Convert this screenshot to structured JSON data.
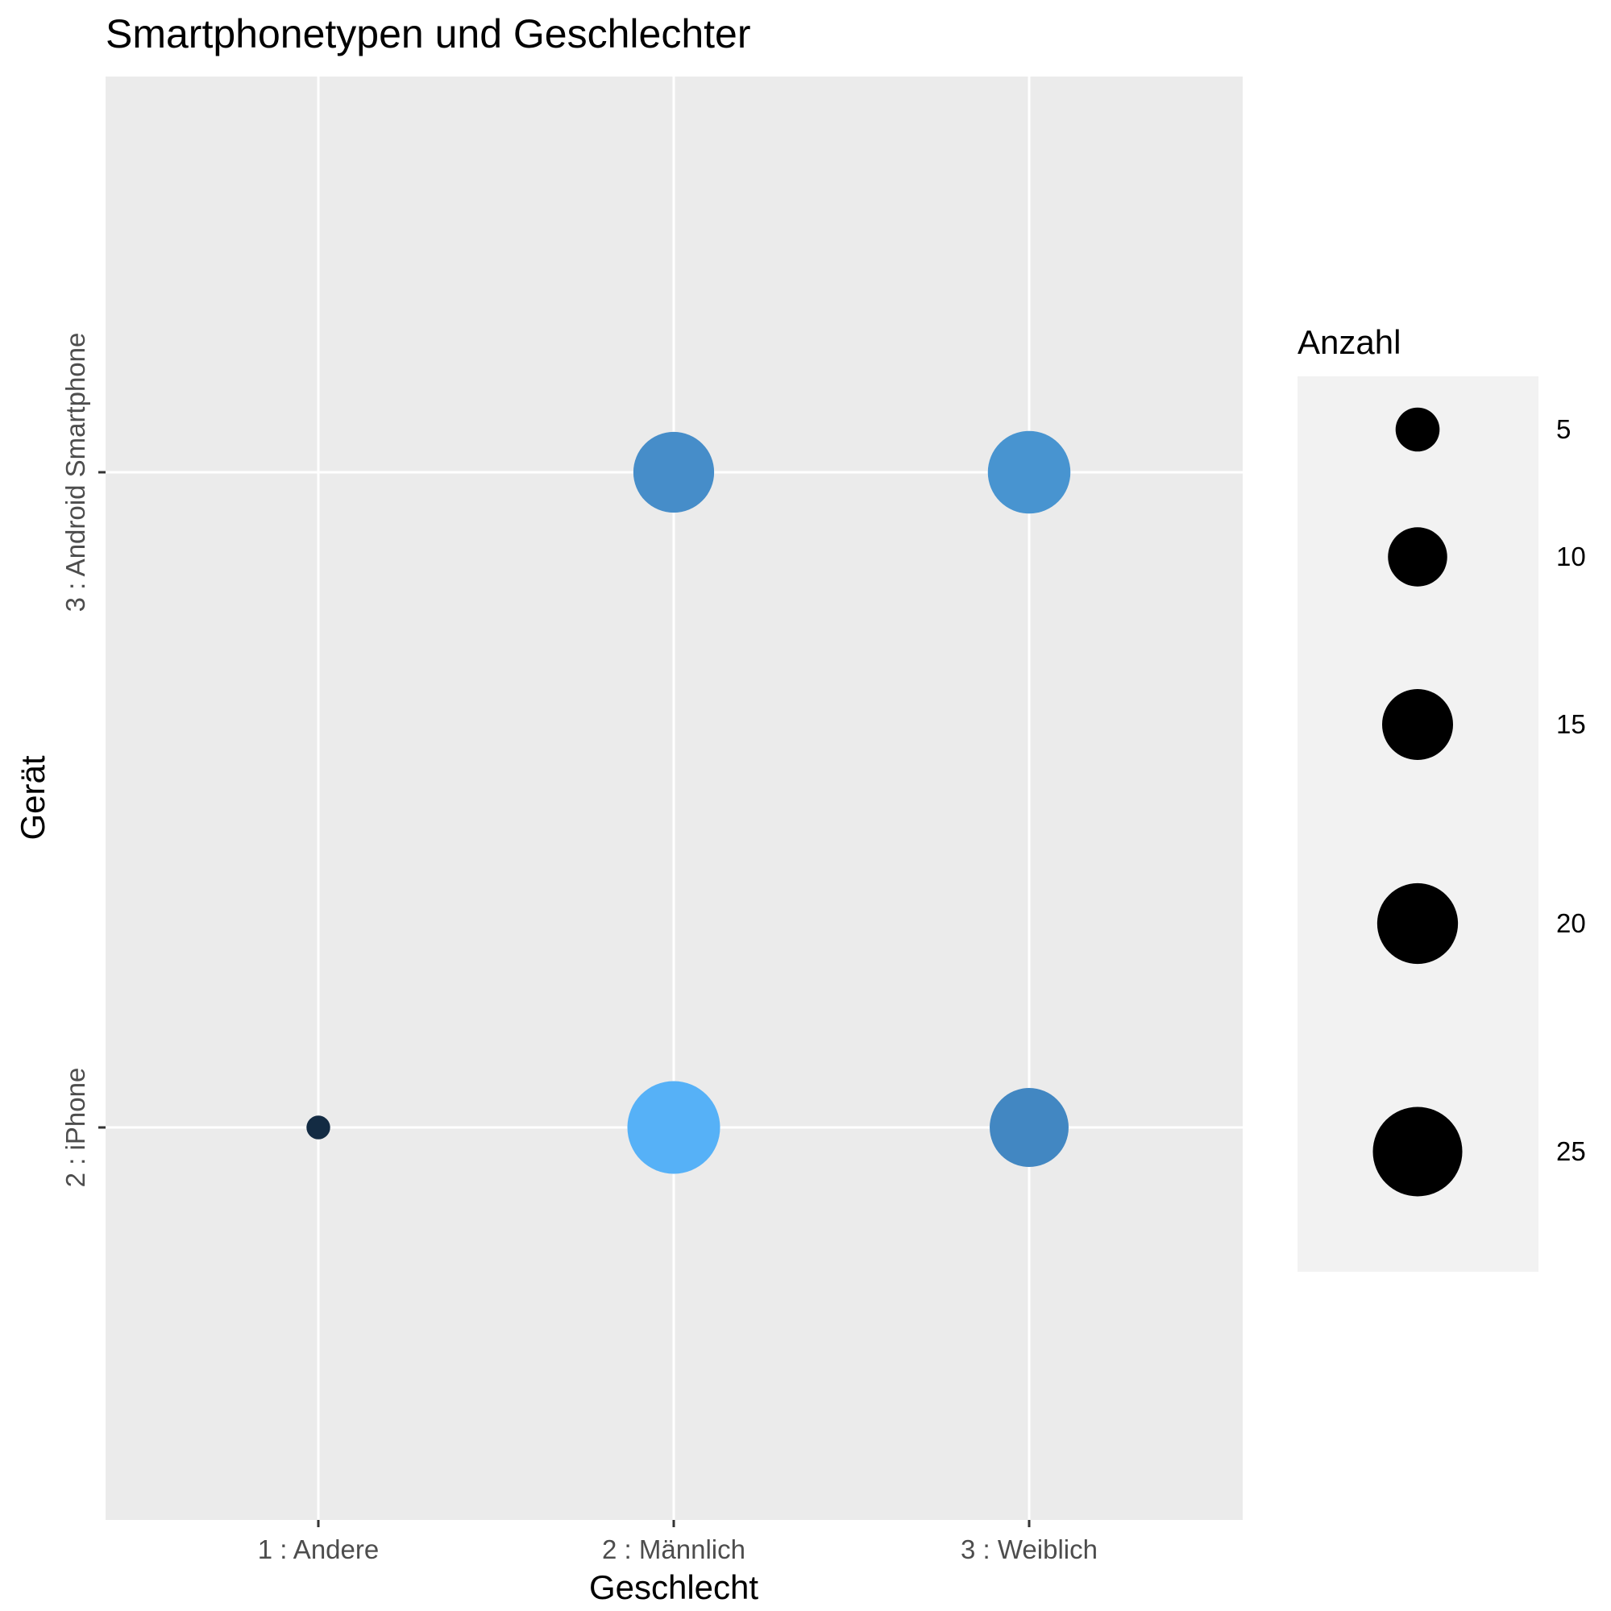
{
  "chart_data": {
    "type": "scatter",
    "title": "Smartphonetypen und Geschlechter",
    "xlabel": "Geschlecht",
    "ylabel": "Gerät",
    "x_categories": [
      "1 : Andere",
      "2 : Männlich",
      "3 : Weiblich"
    ],
    "y_categories": [
      "2 : iPhone",
      "3 : Android Smartphone"
    ],
    "size_variable": "Anzahl",
    "points": [
      {
        "x": "1 : Andere",
        "y": "2 : iPhone",
        "count": 1,
        "color": "#132b43"
      },
      {
        "x": "2 : Männlich",
        "y": "2 : iPhone",
        "count": 27,
        "color": "#56b1f7"
      },
      {
        "x": "3 : Weiblich",
        "y": "2 : iPhone",
        "count": 19,
        "color": "#4287c2"
      },
      {
        "x": "2 : Männlich",
        "y": "3 : Android Smartphone",
        "count": 20,
        "color": "#468dc9"
      },
      {
        "x": "3 : Weiblich",
        "y": "3 : Android Smartphone",
        "count": 21,
        "color": "#4894d0"
      }
    ],
    "legend": {
      "title": "Anzahl",
      "placement": "right",
      "breaks": [
        5,
        10,
        15,
        20,
        25
      ]
    },
    "grid": true,
    "panel_background": "#ebebeb",
    "grid_color": "#ffffff"
  }
}
